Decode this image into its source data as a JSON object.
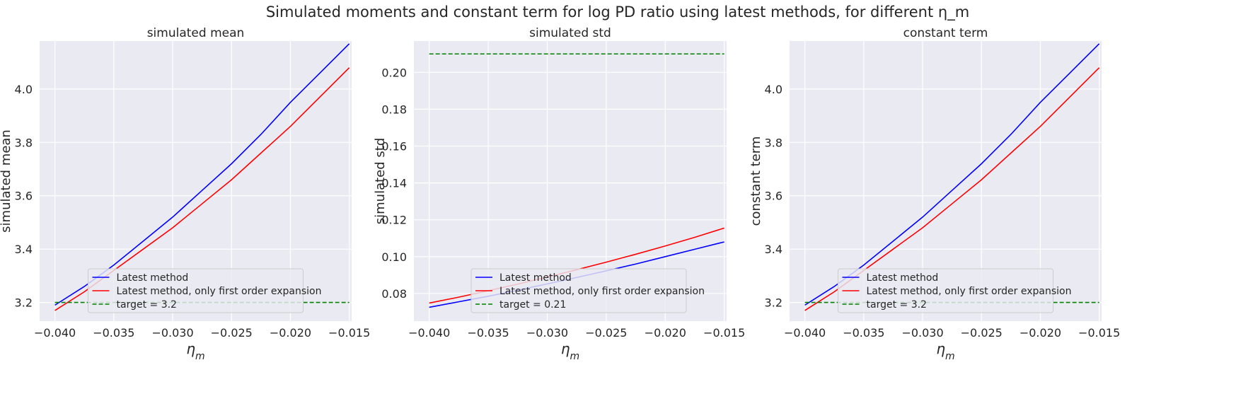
{
  "suptitle": "Simulated moments and constant term for log PD ratio using latest methods, for different η_m",
  "colors": {
    "background": "#EAEAF2",
    "grid": "#FFFFFF",
    "latest": "#0000FF",
    "first_order": "#FF0000",
    "target": "#008000",
    "text": "#262626"
  },
  "chart_data": [
    {
      "type": "line",
      "title": "simulated mean",
      "xlabel": "η_m",
      "ylabel": "simulated mean",
      "xlim": [
        -0.0413,
        -0.0148
      ],
      "ylim": [
        3.13,
        4.18
      ],
      "xticks": [
        -0.04,
        -0.035,
        -0.03,
        -0.025,
        -0.02,
        -0.015
      ],
      "xtick_labels": [
        "−0.040",
        "−0.035",
        "−0.030",
        "−0.025",
        "−0.020",
        "−0.015"
      ],
      "yticks": [
        3.2,
        3.4,
        3.6,
        3.8,
        4.0
      ],
      "ytick_labels": [
        "3.2",
        "3.4",
        "3.6",
        "3.8",
        "4.0"
      ],
      "grid": true,
      "legend_position": "lower center",
      "x": [
        -0.04,
        -0.0375,
        -0.035,
        -0.0325,
        -0.03,
        -0.0275,
        -0.025,
        -0.0225,
        -0.02,
        -0.0175,
        -0.015
      ],
      "series": [
        {
          "name": "Latest method",
          "style": "solid",
          "color_key": "latest",
          "values": [
            3.19,
            3.26,
            3.34,
            3.43,
            3.52,
            3.62,
            3.72,
            3.83,
            3.95,
            4.06,
            4.17
          ]
        },
        {
          "name": "Latest method, only first order expansion",
          "style": "solid",
          "color_key": "first_order",
          "values": [
            3.17,
            3.24,
            3.32,
            3.4,
            3.48,
            3.57,
            3.66,
            3.76,
            3.86,
            3.97,
            4.08
          ]
        },
        {
          "name": "target = 3.2",
          "style": "dashed",
          "color_key": "target",
          "values": [
            3.2,
            3.2,
            3.2,
            3.2,
            3.2,
            3.2,
            3.2,
            3.2,
            3.2,
            3.2,
            3.2
          ]
        }
      ]
    },
    {
      "type": "line",
      "title": "simulated std",
      "xlabel": "η_m",
      "ylabel": "simulated std",
      "xlim": [
        -0.0413,
        -0.0148
      ],
      "ylim": [
        0.065,
        0.217
      ],
      "xticks": [
        -0.04,
        -0.035,
        -0.03,
        -0.025,
        -0.02,
        -0.015
      ],
      "xtick_labels": [
        "−0.040",
        "−0.035",
        "−0.030",
        "−0.025",
        "−0.020",
        "−0.015"
      ],
      "yticks": [
        0.08,
        0.1,
        0.12,
        0.14,
        0.16,
        0.18,
        0.2
      ],
      "ytick_labels": [
        "0.08",
        "0.10",
        "0.12",
        "0.14",
        "0.16",
        "0.18",
        "0.20"
      ],
      "grid": true,
      "legend_position": "lower center",
      "x": [
        -0.04,
        -0.0375,
        -0.035,
        -0.0325,
        -0.03,
        -0.0275,
        -0.025,
        -0.0225,
        -0.02,
        -0.0175,
        -0.015
      ],
      "series": [
        {
          "name": "Latest method",
          "style": "solid",
          "color_key": "latest",
          "values": [
            0.0725,
            0.0755,
            0.0785,
            0.0818,
            0.0852,
            0.0887,
            0.0923,
            0.096,
            0.1,
            0.104,
            0.108
          ]
        },
        {
          "name": "Latest method, only first order expansion",
          "style": "solid",
          "color_key": "first_order",
          "values": [
            0.0748,
            0.078,
            0.0815,
            0.0851,
            0.0889,
            0.0929,
            0.097,
            0.1013,
            0.1058,
            0.1105,
            0.1155
          ]
        },
        {
          "name": "target = 0.21",
          "style": "dashed",
          "color_key": "target",
          "values": [
            0.21,
            0.21,
            0.21,
            0.21,
            0.21,
            0.21,
            0.21,
            0.21,
            0.21,
            0.21,
            0.21
          ]
        }
      ]
    },
    {
      "type": "line",
      "title": "constant term",
      "xlabel": "η_m",
      "ylabel": "constant term",
      "xlim": [
        -0.0413,
        -0.0148
      ],
      "ylim": [
        3.13,
        4.18
      ],
      "xticks": [
        -0.04,
        -0.035,
        -0.03,
        -0.025,
        -0.02,
        -0.015
      ],
      "xtick_labels": [
        "−0.040",
        "−0.035",
        "−0.030",
        "−0.025",
        "−0.020",
        "−0.015"
      ],
      "yticks": [
        3.2,
        3.4,
        3.6,
        3.8,
        4.0
      ],
      "ytick_labels": [
        "3.2",
        "3.4",
        "3.6",
        "3.8",
        "4.0"
      ],
      "grid": true,
      "legend_position": "lower center",
      "x": [
        -0.04,
        -0.0375,
        -0.035,
        -0.0325,
        -0.03,
        -0.0275,
        -0.025,
        -0.0225,
        -0.02,
        -0.0175,
        -0.015
      ],
      "series": [
        {
          "name": "Latest method",
          "style": "solid",
          "color_key": "latest",
          "values": [
            3.19,
            3.26,
            3.34,
            3.43,
            3.52,
            3.62,
            3.72,
            3.83,
            3.95,
            4.06,
            4.17
          ]
        },
        {
          "name": "Latest method, only first order expansion",
          "style": "solid",
          "color_key": "first_order",
          "values": [
            3.17,
            3.24,
            3.32,
            3.4,
            3.48,
            3.57,
            3.66,
            3.76,
            3.86,
            3.97,
            4.08
          ]
        },
        {
          "name": "target = 3.2",
          "style": "dashed",
          "color_key": "target",
          "values": [
            3.2,
            3.2,
            3.2,
            3.2,
            3.2,
            3.2,
            3.2,
            3.2,
            3.2,
            3.2,
            3.2
          ]
        }
      ]
    }
  ]
}
